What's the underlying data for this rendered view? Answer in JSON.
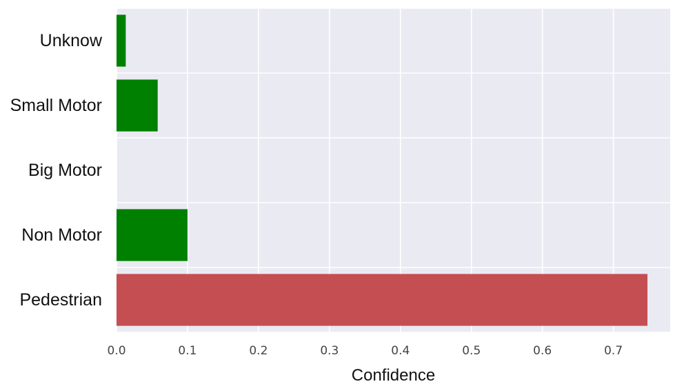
{
  "chart_data": {
    "type": "bar",
    "orientation": "horizontal",
    "categories": [
      "Unknow",
      "Small Motor",
      "Big Motor",
      "Non Motor",
      "Pedestrian"
    ],
    "values": [
      0.013,
      0.058,
      0.0,
      0.1,
      0.748
    ],
    "bar_colors": [
      "#008000",
      "#008000",
      "#008000",
      "#008000",
      "#c44e52"
    ],
    "xlabel": "Confidence",
    "ylabel": "",
    "xlim": [
      0,
      0.78
    ],
    "x_ticks": [
      "0.0",
      "0.1",
      "0.2",
      "0.3",
      "0.4",
      "0.5",
      "0.6",
      "0.7"
    ],
    "grid": true,
    "background": "#eaeaf2",
    "grid_color": "#ffffff"
  }
}
